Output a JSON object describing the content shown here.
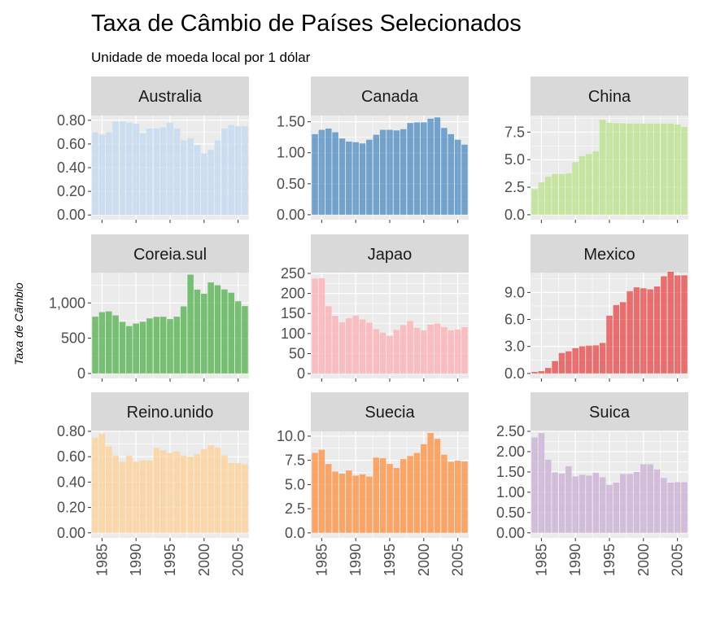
{
  "chart_data": {
    "type": "bar",
    "title": "Taxa de Câmbio de Países Selecionados",
    "subtitle": "Unidade de moeda local por 1 dólar",
    "ylabel": "Taxa de Câmbio",
    "xlabel": "",
    "x": [
      1984,
      1985,
      1986,
      1987,
      1988,
      1989,
      1990,
      1991,
      1992,
      1993,
      1994,
      1995,
      1996,
      1997,
      1998,
      1999,
      2000,
      2001,
      2002,
      2003,
      2004,
      2005,
      2006
    ],
    "x_ticks": [
      1985,
      1990,
      1995,
      2000,
      2005
    ],
    "x_tick_labels": [
      "1985",
      "1990",
      "1995",
      "2000",
      "2005"
    ],
    "x_range": [
      1983.4,
      2006.6
    ],
    "grid": true,
    "panels": [
      {
        "name": "Australia",
        "color": "#C6DBEF",
        "alpha": 0.85,
        "ylim": [
          -0.04,
          0.84
        ],
        "y_ticks": [
          0,
          0.2,
          0.4,
          0.6,
          0.8
        ],
        "y_tick_labels": [
          "0.00",
          "0.20",
          "0.40",
          "0.60",
          "0.80"
        ],
        "values": [
          0.7,
          0.68,
          0.7,
          0.79,
          0.79,
          0.78,
          0.77,
          0.69,
          0.73,
          0.73,
          0.74,
          0.78,
          0.73,
          0.63,
          0.65,
          0.59,
          0.52,
          0.55,
          0.63,
          0.73,
          0.76,
          0.75,
          0.75
        ]
      },
      {
        "name": "Canada",
        "color": "#2171B5",
        "alpha": 0.6,
        "ylim": [
          -0.08,
          1.6
        ],
        "y_ticks": [
          0,
          0.5,
          1,
          1.5
        ],
        "y_tick_labels": [
          "0.00",
          "0.50",
          "1.00",
          "1.50"
        ],
        "values": [
          1.3,
          1.37,
          1.39,
          1.33,
          1.23,
          1.18,
          1.17,
          1.15,
          1.21,
          1.29,
          1.37,
          1.37,
          1.36,
          1.38,
          1.48,
          1.49,
          1.49,
          1.55,
          1.57,
          1.4,
          1.3,
          1.21,
          1.13
        ]
      },
      {
        "name": "China",
        "color": "#B8E186",
        "alpha": 0.75,
        "ylim": [
          -0.45,
          9.0
        ],
        "y_ticks": [
          0,
          2.5,
          5,
          7.5
        ],
        "y_tick_labels": [
          "0.0",
          "2.5",
          "5.0",
          "7.5"
        ],
        "values": [
          2.33,
          2.94,
          3.45,
          3.72,
          3.72,
          3.77,
          4.78,
          5.32,
          5.51,
          5.76,
          8.62,
          8.35,
          8.31,
          8.29,
          8.28,
          8.28,
          8.28,
          8.28,
          8.28,
          8.28,
          8.28,
          8.19,
          7.97
        ]
      },
      {
        "name": "Coreia.sul",
        "color": "#4DAF4A",
        "alpha": 0.75,
        "ylim": [
          -70,
          1430
        ],
        "y_ticks": [
          0,
          500,
          1000
        ],
        "y_tick_labels": [
          "0",
          "500",
          "1,000"
        ],
        "values": [
          806,
          870,
          881,
          823,
          731,
          671,
          708,
          733,
          781,
          803,
          804,
          771,
          805,
          951,
          1401,
          1189,
          1131,
          1291,
          1251,
          1191,
          1145,
          1024,
          955
        ]
      },
      {
        "name": "Japao",
        "color": "#FBB4B9",
        "alpha": 0.85,
        "ylim": [
          -12,
          252
        ],
        "y_ticks": [
          0,
          50,
          100,
          150,
          200,
          250
        ],
        "y_tick_labels": [
          "0",
          "50",
          "100",
          "150",
          "200",
          "250"
        ],
        "values": [
          237,
          238,
          168,
          144,
          128,
          138,
          145,
          135,
          127,
          111,
          102,
          94,
          109,
          121,
          131,
          114,
          108,
          122,
          125,
          116,
          108,
          110,
          116
        ]
      },
      {
        "name": "Mexico",
        "color": "#E31A1C",
        "alpha": 0.6,
        "ylim": [
          -0.55,
          11.2
        ],
        "y_ticks": [
          0,
          3,
          6,
          9
        ],
        "y_tick_labels": [
          "0.0",
          "3.0",
          "6.0",
          "9.0"
        ],
        "values": [
          0.17,
          0.26,
          0.61,
          1.38,
          2.27,
          2.46,
          2.81,
          3.02,
          3.09,
          3.12,
          3.39,
          6.42,
          7.6,
          7.92,
          9.14,
          9.56,
          9.46,
          9.34,
          9.66,
          10.79,
          11.29,
          10.89,
          10.9
        ]
      },
      {
        "name": "Reino.unido",
        "color": "#FDD49E",
        "alpha": 0.85,
        "ylim": [
          -0.04,
          0.8
        ],
        "y_ticks": [
          0,
          0.2,
          0.4,
          0.6,
          0.8
        ],
        "y_tick_labels": [
          "0.00",
          "0.20",
          "0.40",
          "0.60",
          "0.80"
        ],
        "values": [
          0.75,
          0.78,
          0.68,
          0.61,
          0.56,
          0.61,
          0.56,
          0.57,
          0.57,
          0.67,
          0.65,
          0.63,
          0.64,
          0.61,
          0.6,
          0.62,
          0.66,
          0.69,
          0.67,
          0.61,
          0.55,
          0.55,
          0.54
        ]
      },
      {
        "name": "Suecia",
        "color": "#FD8D3C",
        "alpha": 0.75,
        "ylim": [
          -0.52,
          10.5
        ],
        "y_ticks": [
          0,
          2.5,
          5,
          7.5,
          10
        ],
        "y_tick_labels": [
          "0.0",
          "2.5",
          "5.0",
          "7.5",
          "10.0"
        ],
        "values": [
          8.27,
          8.6,
          7.12,
          6.34,
          6.13,
          6.45,
          5.92,
          6.05,
          5.82,
          7.78,
          7.72,
          7.13,
          6.71,
          7.63,
          7.95,
          8.26,
          9.16,
          10.33,
          9.72,
          8.08,
          7.35,
          7.47,
          7.38
        ]
      },
      {
        "name": "Suica",
        "color": "#CAB2D6",
        "alpha": 0.8,
        "ylim": [
          -0.125,
          2.5
        ],
        "y_ticks": [
          0,
          0.5,
          1,
          1.5,
          2,
          2.5
        ],
        "y_tick_labels": [
          "0.00",
          "0.50",
          "1.00",
          "1.50",
          "2.00",
          "2.50"
        ],
        "values": [
          2.35,
          2.46,
          1.8,
          1.49,
          1.46,
          1.64,
          1.39,
          1.43,
          1.41,
          1.48,
          1.37,
          1.18,
          1.24,
          1.45,
          1.45,
          1.5,
          1.69,
          1.69,
          1.56,
          1.35,
          1.24,
          1.25,
          1.25
        ]
      }
    ]
  }
}
